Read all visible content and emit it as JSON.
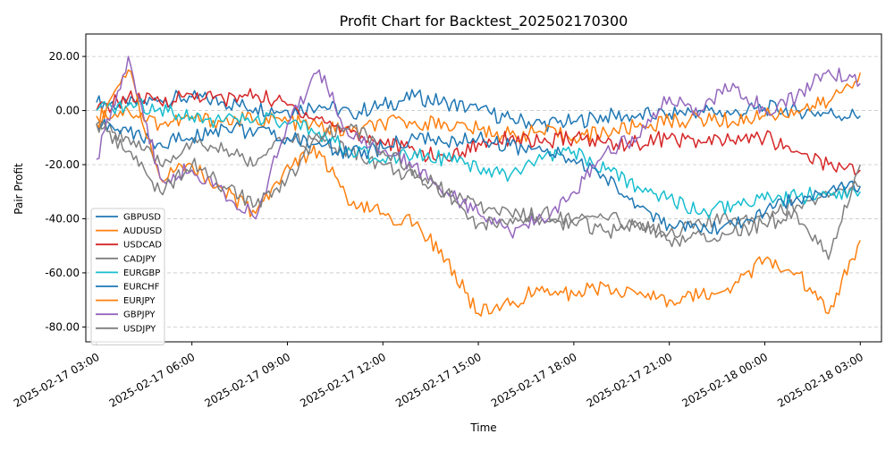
{
  "chart_data": {
    "type": "line",
    "title": "Profit Chart for Backtest_202502170300",
    "xlabel": "Time",
    "ylabel": "Pair Profit",
    "x_range": [
      "2025-02-17 02:40",
      "2025-02-18 03:40"
    ],
    "ylim": [
      -85.5,
      28.3
    ],
    "grid": true,
    "grid_axis": "y",
    "legend_position": "lower-left",
    "x_ticks": [
      "2025-02-17 03:00",
      "2025-02-17 06:00",
      "2025-02-17 09:00",
      "2025-02-17 12:00",
      "2025-02-17 15:00",
      "2025-02-17 18:00",
      "2025-02-17 21:00",
      "2025-02-18 00:00",
      "2025-02-18 03:00"
    ],
    "y_ticks": [
      "-80.00",
      "-60.00",
      "-40.00",
      "-20.00",
      "0.00",
      "20.00"
    ],
    "y_tick_values": [
      -80,
      -60,
      -40,
      -20,
      0,
      20
    ],
    "series": [
      {
        "name": "GBPUSD",
        "color": "#1f77b4",
        "x": [
          "2025-02-17 03:00",
          "2025-02-17 04:00",
          "2025-02-17 05:00",
          "2025-02-17 06:00",
          "2025-02-17 07:00",
          "2025-02-17 08:00",
          "2025-02-17 09:00",
          "2025-02-17 10:00",
          "2025-02-17 11:00",
          "2025-02-17 12:00",
          "2025-02-17 13:00",
          "2025-02-17 14:00",
          "2025-02-17 15:00",
          "2025-02-17 16:00",
          "2025-02-17 17:00",
          "2025-02-17 18:00",
          "2025-02-17 19:00",
          "2025-02-17 20:00",
          "2025-02-17 21:00",
          "2025-02-17 22:00",
          "2025-02-17 23:00",
          "2025-02-18 00:00",
          "2025-02-18 01:00",
          "2025-02-18 02:00",
          "2025-02-18 03:00"
        ],
        "values": [
          3,
          2,
          4,
          5,
          3,
          1,
          0,
          2,
          -1,
          2,
          5,
          3,
          0,
          -3,
          -5,
          -4,
          -2,
          -2,
          -1,
          0,
          -1,
          1,
          0,
          -1,
          -2
        ]
      },
      {
        "name": "AUDUSD",
        "color": "#ff7f0e",
        "x": [
          "2025-02-17 03:00",
          "2025-02-17 04:00",
          "2025-02-17 05:00",
          "2025-02-17 06:00",
          "2025-02-17 07:00",
          "2025-02-17 08:00",
          "2025-02-17 09:00",
          "2025-02-17 10:00",
          "2025-02-17 11:00",
          "2025-02-17 12:00",
          "2025-02-17 13:00",
          "2025-02-17 14:00",
          "2025-02-17 15:00",
          "2025-02-17 16:00",
          "2025-02-17 17:00",
          "2025-02-17 18:00",
          "2025-02-17 19:00",
          "2025-02-17 20:00",
          "2025-02-17 21:00",
          "2025-02-17 22:00",
          "2025-02-17 23:00",
          "2025-02-18 00:00",
          "2025-02-18 01:00",
          "2025-02-18 02:00",
          "2025-02-18 03:00"
        ],
        "values": [
          -2,
          0,
          -5,
          -3,
          -4,
          -3,
          -4,
          -6,
          -8,
          -5,
          -4,
          -5,
          -7,
          -9,
          -8,
          -10,
          -8,
          -6,
          -4,
          -3,
          -4,
          -2,
          0,
          3,
          14
        ]
      },
      {
        "name": "USDCAD",
        "color": "#d62728",
        "x": [
          "2025-02-17 03:00",
          "2025-02-17 04:00",
          "2025-02-17 05:00",
          "2025-02-17 06:00",
          "2025-02-17 07:00",
          "2025-02-17 08:00",
          "2025-02-17 09:00",
          "2025-02-17 10:00",
          "2025-02-17 11:00",
          "2025-02-17 12:00",
          "2025-02-17 13:00",
          "2025-02-17 14:00",
          "2025-02-17 15:00",
          "2025-02-17 16:00",
          "2025-02-17 17:00",
          "2025-02-17 18:00",
          "2025-02-17 19:00",
          "2025-02-17 20:00",
          "2025-02-17 21:00",
          "2025-02-17 22:00",
          "2025-02-17 23:00",
          "2025-02-18 00:00",
          "2025-02-18 01:00",
          "2025-02-18 02:00",
          "2025-02-18 03:00"
        ],
        "values": [
          0,
          5,
          3,
          6,
          4,
          6,
          2,
          -3,
          -8,
          -12,
          -15,
          -18,
          -12,
          -10,
          -12,
          -10,
          -12,
          -12,
          -10,
          -12,
          -11,
          -10,
          -15,
          -20,
          -22
        ]
      },
      {
        "name": "CADJPY",
        "color": "#7f7f7f",
        "x": [
          "2025-02-17 03:00",
          "2025-02-17 04:00",
          "2025-02-17 05:00",
          "2025-02-17 06:00",
          "2025-02-17 07:00",
          "2025-02-17 08:00",
          "2025-02-17 09:00",
          "2025-02-17 10:00",
          "2025-02-17 11:00",
          "2025-02-17 12:00",
          "2025-02-17 13:00",
          "2025-02-17 14:00",
          "2025-02-17 15:00",
          "2025-02-17 16:00",
          "2025-02-17 17:00",
          "2025-02-17 18:00",
          "2025-02-17 19:00",
          "2025-02-17 20:00",
          "2025-02-17 21:00",
          "2025-02-17 22:00",
          "2025-02-17 23:00",
          "2025-02-18 00:00",
          "2025-02-18 01:00",
          "2025-02-18 02:00",
          "2025-02-18 03:00"
        ],
        "values": [
          -5,
          -10,
          -20,
          -12,
          -15,
          -20,
          -10,
          -12,
          -15,
          -20,
          -25,
          -30,
          -35,
          -38,
          -40,
          -42,
          -40,
          -42,
          -45,
          -42,
          -40,
          -38,
          -35,
          -32,
          -28
        ]
      },
      {
        "name": "EURGBP",
        "color": "#17becf",
        "x": [
          "2025-02-17 03:00",
          "2025-02-17 04:00",
          "2025-02-17 05:00",
          "2025-02-17 06:00",
          "2025-02-17 07:00",
          "2025-02-17 08:00",
          "2025-02-17 09:00",
          "2025-02-17 10:00",
          "2025-02-17 11:00",
          "2025-02-17 12:00",
          "2025-02-17 13:00",
          "2025-02-17 14:00",
          "2025-02-17 15:00",
          "2025-02-17 16:00",
          "2025-02-17 17:00",
          "2025-02-17 18:00",
          "2025-02-17 19:00",
          "2025-02-17 20:00",
          "2025-02-17 21:00",
          "2025-02-17 22:00",
          "2025-02-17 23:00",
          "2025-02-18 00:00",
          "2025-02-18 01:00",
          "2025-02-18 02:00",
          "2025-02-18 03:00"
        ],
        "values": [
          0,
          2,
          1,
          -2,
          -4,
          -3,
          -5,
          -8,
          -15,
          -18,
          -15,
          -18,
          -22,
          -24,
          -18,
          -15,
          -22,
          -28,
          -32,
          -38,
          -35,
          -33,
          -32,
          -30,
          -30
        ]
      },
      {
        "name": "EURCHF",
        "color": "#1f77b4",
        "x": [
          "2025-02-17 03:00",
          "2025-02-17 04:00",
          "2025-02-17 05:00",
          "2025-02-17 06:00",
          "2025-02-17 07:00",
          "2025-02-17 08:00",
          "2025-02-17 09:00",
          "2025-02-17 10:00",
          "2025-02-17 11:00",
          "2025-02-17 12:00",
          "2025-02-17 13:00",
          "2025-02-17 14:00",
          "2025-02-17 15:00",
          "2025-02-17 16:00",
          "2025-02-17 17:00",
          "2025-02-17 18:00",
          "2025-02-17 19:00",
          "2025-02-17 20:00",
          "2025-02-17 21:00",
          "2025-02-17 22:00",
          "2025-02-17 23:00",
          "2025-02-18 00:00",
          "2025-02-18 01:00",
          "2025-02-18 02:00",
          "2025-02-18 03:00"
        ],
        "values": [
          -5,
          -8,
          -12,
          -10,
          -6,
          -8,
          -10,
          -12,
          -16,
          -14,
          -10,
          -12,
          -10,
          -13,
          -15,
          -18,
          -25,
          -35,
          -42,
          -45,
          -42,
          -38,
          -32,
          -30,
          -28
        ]
      },
      {
        "name": "EURJPY",
        "color": "#ff7f0e",
        "x": [
          "2025-02-17 03:00",
          "2025-02-17 04:00",
          "2025-02-17 05:00",
          "2025-02-17 06:00",
          "2025-02-17 07:00",
          "2025-02-17 08:00",
          "2025-02-17 09:00",
          "2025-02-17 10:00",
          "2025-02-17 11:00",
          "2025-02-17 12:00",
          "2025-02-17 13:00",
          "2025-02-17 14:00",
          "2025-02-17 15:00",
          "2025-02-17 16:00",
          "2025-02-17 17:00",
          "2025-02-17 18:00",
          "2025-02-17 19:00",
          "2025-02-17 20:00",
          "2025-02-17 21:00",
          "2025-02-17 22:00",
          "2025-02-17 23:00",
          "2025-02-18 00:00",
          "2025-02-18 01:00",
          "2025-02-18 02:00",
          "2025-02-18 03:00"
        ],
        "values": [
          -5,
          15,
          -25,
          -20,
          -30,
          -38,
          -20,
          -15,
          -35,
          -38,
          -42,
          -55,
          -75,
          -72,
          -65,
          -68,
          -65,
          -68,
          -70,
          -68,
          -65,
          -55,
          -60,
          -75,
          -48
        ]
      },
      {
        "name": "GBPJPY",
        "color": "#9467bd",
        "x": [
          "2025-02-17 03:00",
          "2025-02-17 04:00",
          "2025-02-17 05:00",
          "2025-02-17 06:00",
          "2025-02-17 07:00",
          "2025-02-17 08:00",
          "2025-02-17 09:00",
          "2025-02-17 10:00",
          "2025-02-17 11:00",
          "2025-02-17 12:00",
          "2025-02-17 13:00",
          "2025-02-17 14:00",
          "2025-02-17 15:00",
          "2025-02-17 16:00",
          "2025-02-17 17:00",
          "2025-02-17 18:00",
          "2025-02-17 19:00",
          "2025-02-17 20:00",
          "2025-02-17 21:00",
          "2025-02-17 22:00",
          "2025-02-17 23:00",
          "2025-02-18 00:00",
          "2025-02-18 01:00",
          "2025-02-18 02:00",
          "2025-02-18 03:00"
        ],
        "values": [
          -18,
          20,
          -25,
          -22,
          -30,
          -40,
          -5,
          15,
          -10,
          -15,
          -20,
          -30,
          -38,
          -45,
          -40,
          -30,
          -15,
          -10,
          5,
          0,
          10,
          0,
          5,
          15,
          10
        ]
      },
      {
        "name": "USDJPY",
        "color": "#7f7f7f",
        "x": [
          "2025-02-17 03:00",
          "2025-02-17 04:00",
          "2025-02-17 05:00",
          "2025-02-17 06:00",
          "2025-02-17 07:00",
          "2025-02-17 08:00",
          "2025-02-17 09:00",
          "2025-02-17 10:00",
          "2025-02-17 11:00",
          "2025-02-17 12:00",
          "2025-02-17 13:00",
          "2025-02-17 14:00",
          "2025-02-17 15:00",
          "2025-02-17 16:00",
          "2025-02-17 17:00",
          "2025-02-17 18:00",
          "2025-02-17 19:00",
          "2025-02-17 20:00",
          "2025-02-17 21:00",
          "2025-02-17 22:00",
          "2025-02-17 23:00",
          "2025-02-18 00:00",
          "2025-02-18 01:00",
          "2025-02-18 02:00",
          "2025-02-18 03:00"
        ],
        "values": [
          -5,
          -15,
          -30,
          -20,
          -28,
          -35,
          -25,
          -10,
          -5,
          -15,
          -22,
          -30,
          -42,
          -40,
          -38,
          -40,
          -45,
          -42,
          -48,
          -46,
          -45,
          -42,
          -38,
          -55,
          -20
        ]
      }
    ]
  }
}
